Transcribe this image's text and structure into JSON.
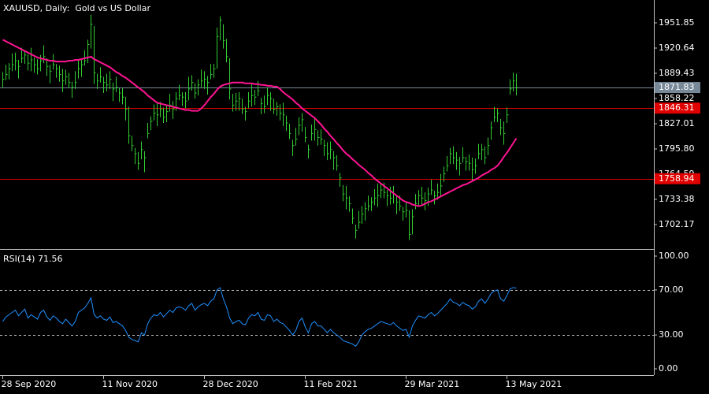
{
  "chart_data": [
    {
      "type": "ohlc",
      "title": "XAUUSD, Daily:  Gold vs US Dollar",
      "categories": [
        "28 Sep 2020",
        null,
        null,
        null,
        null,
        null,
        null,
        null,
        null,
        null,
        null,
        null,
        null,
        null,
        null,
        null,
        null,
        null,
        null,
        null,
        null,
        null,
        null,
        null,
        null,
        null,
        null,
        null,
        null,
        null,
        null,
        null,
        "11 Nov 2020",
        null,
        null,
        null,
        null,
        null,
        null,
        null,
        null,
        null,
        null,
        null,
        null,
        null,
        null,
        null,
        null,
        null,
        null,
        null,
        null,
        null,
        null,
        null,
        null,
        null,
        null,
        null,
        null,
        null,
        null,
        null,
        "28 Dec 2020",
        null,
        null,
        null,
        null,
        null,
        null,
        null,
        null,
        null,
        null,
        null,
        null,
        null,
        null,
        null,
        null,
        null,
        null,
        null,
        null,
        null,
        null,
        null,
        null,
        null,
        null,
        null,
        null,
        null,
        null,
        null,
        "11 Feb 2021",
        null,
        null,
        null,
        null,
        null,
        null,
        null,
        null,
        null,
        null,
        null,
        null,
        null,
        null,
        null,
        null,
        null,
        null,
        null,
        null,
        null,
        null,
        null,
        null,
        null,
        null,
        null,
        null,
        null,
        null,
        null,
        "29 Mar 2021",
        null,
        null,
        null,
        null,
        null,
        null,
        null,
        null,
        null,
        null,
        null,
        null,
        null,
        null,
        null,
        null,
        null,
        null,
        null,
        null,
        null,
        null,
        null,
        null,
        null,
        null,
        null,
        null,
        null,
        null,
        null,
        "13 May 2021",
        null,
        null,
        null
      ],
      "high": [
        1891,
        1900,
        1902,
        1914,
        1915,
        1906,
        1921,
        1918,
        1913,
        1921,
        1909,
        1907,
        1912,
        1924,
        1908,
        1900,
        1913,
        1901,
        1899,
        1895,
        1894,
        1890,
        1879,
        1892,
        1905,
        1908,
        1918,
        1931,
        1962,
        1948,
        1889,
        1897,
        1885,
        1889,
        1892,
        1878,
        1885,
        1871,
        1871,
        1860,
        1848,
        1812,
        1797,
        1792,
        1805,
        1793,
        1828,
        1836,
        1851,
        1853,
        1854,
        1847,
        1849,
        1864,
        1855,
        1866,
        1875,
        1866,
        1866,
        1885,
        1887,
        1877,
        1882,
        1894,
        1892,
        1886,
        1901,
        1901,
        1946,
        1960,
        1950,
        1932,
        1908,
        1864,
        1865,
        1866,
        1858,
        1848,
        1866,
        1877,
        1869,
        1880,
        1859,
        1862,
        1872,
        1866,
        1858,
        1854,
        1851,
        1853,
        1837,
        1827,
        1807,
        1822,
        1835,
        1840,
        1823,
        1801,
        1826,
        1835,
        1819,
        1820,
        1807,
        1804,
        1805,
        1793,
        1788,
        1766,
        1751,
        1750,
        1737,
        1722,
        1702,
        1719,
        1725,
        1730,
        1738,
        1736,
        1746,
        1753,
        1754,
        1754,
        1745,
        1749,
        1750,
        1738,
        1738,
        1724,
        1731,
        1720,
        1721,
        1740,
        1745,
        1749,
        1742,
        1748,
        1758,
        1744,
        1753,
        1765,
        1774,
        1787,
        1797,
        1799,
        1792,
        1786,
        1798,
        1786,
        1789,
        1785,
        1784,
        1802,
        1802,
        1799,
        1810,
        1830,
        1848,
        1846,
        1833,
        1830,
        1847,
        1882,
        1890,
        1889
      ],
      "low": [
        1872,
        1881,
        1882,
        1892,
        1893,
        1883,
        1902,
        1901,
        1893,
        1892,
        1890,
        1888,
        1892,
        1902,
        1886,
        1877,
        1894,
        1884,
        1879,
        1866,
        1875,
        1871,
        1859,
        1870,
        1883,
        1885,
        1899,
        1902,
        1920,
        1876,
        1870,
        1878,
        1865,
        1867,
        1870,
        1855,
        1866,
        1854,
        1851,
        1831,
        1802,
        1793,
        1777,
        1770,
        1783,
        1767,
        1809,
        1819,
        1831,
        1824,
        1835,
        1828,
        1829,
        1842,
        1833,
        1843,
        1856,
        1849,
        1846,
        1856,
        1868,
        1858,
        1862,
        1872,
        1870,
        1863,
        1882,
        1884,
        1895,
        1930,
        1920,
        1903,
        1857,
        1842,
        1843,
        1843,
        1839,
        1831,
        1846,
        1848,
        1850,
        1861,
        1839,
        1840,
        1850,
        1843,
        1839,
        1837,
        1831,
        1824,
        1818,
        1808,
        1787,
        1800,
        1813,
        1817,
        1804,
        1784,
        1806,
        1806,
        1800,
        1801,
        1787,
        1782,
        1783,
        1770,
        1769,
        1749,
        1731,
        1721,
        1718,
        1703,
        1685,
        1697,
        1703,
        1707,
        1719,
        1719,
        1726,
        1724,
        1735,
        1735,
        1725,
        1727,
        1728,
        1715,
        1719,
        1707,
        1711,
        1683,
        1690,
        1721,
        1725,
        1727,
        1720,
        1725,
        1739,
        1727,
        1733,
        1736,
        1755,
        1768,
        1777,
        1777,
        1770,
        1763,
        1779,
        1769,
        1769,
        1756,
        1765,
        1783,
        1782,
        1777,
        1788,
        1807,
        1829,
        1829,
        1813,
        1801,
        1828,
        1863,
        1867,
        1862
      ],
      "close": [
        1882,
        1888,
        1895,
        1900,
        1905,
        1898,
        1908,
        1912,
        1902,
        1906,
        1900,
        1895,
        1905,
        1910,
        1898,
        1892,
        1900,
        1895,
        1888,
        1880,
        1885,
        1878,
        1872,
        1878,
        1895,
        1900,
        1905,
        1925,
        1950,
        1890,
        1880,
        1885,
        1878,
        1875,
        1882,
        1870,
        1872,
        1865,
        1860,
        1845,
        1812,
        1800,
        1790,
        1778,
        1795,
        1785,
        1815,
        1830,
        1840,
        1838,
        1845,
        1835,
        1842,
        1850,
        1845,
        1858,
        1862,
        1860,
        1855,
        1870,
        1878,
        1865,
        1875,
        1880,
        1882,
        1878,
        1888,
        1895,
        1935,
        1955,
        1930,
        1910,
        1870,
        1850,
        1855,
        1858,
        1845,
        1842,
        1855,
        1862,
        1860,
        1868,
        1852,
        1848,
        1862,
        1858,
        1845,
        1848,
        1840,
        1838,
        1828,
        1815,
        1800,
        1808,
        1825,
        1832,
        1810,
        1795,
        1815,
        1820,
        1810,
        1808,
        1800,
        1790,
        1795,
        1785,
        1775,
        1760,
        1740,
        1735,
        1728,
        1710,
        1695,
        1705,
        1715,
        1722,
        1725,
        1730,
        1735,
        1738,
        1745,
        1742,
        1738,
        1735,
        1740,
        1730,
        1725,
        1718,
        1720,
        1690,
        1712,
        1728,
        1738,
        1735,
        1732,
        1740,
        1745,
        1738,
        1742,
        1750,
        1765,
        1775,
        1790,
        1785,
        1782,
        1778,
        1785,
        1780,
        1778,
        1770,
        1775,
        1790,
        1795,
        1785,
        1800,
        1822,
        1835,
        1840,
        1822,
        1815,
        1838,
        1870,
        1880,
        1871.83
      ],
      "color": "#32cd32",
      "ma": {
        "color": "#ff1493",
        "values": [
          1931,
          1929,
          1927,
          1925,
          1923,
          1921,
          1919,
          1917,
          1915,
          1913,
          1911,
          1909,
          1908,
          1907,
          1906,
          1905,
          1905,
          1904,
          1904,
          1904,
          1904,
          1905,
          1905,
          1906,
          1906,
          1907,
          1908,
          1909,
          1910,
          1907,
          1905,
          1903,
          1901,
          1899,
          1897,
          1894,
          1891,
          1889,
          1886,
          1884,
          1881,
          1878,
          1875,
          1872,
          1869,
          1866,
          1862,
          1859,
          1856,
          1853,
          1852,
          1851,
          1850,
          1849,
          1848,
          1847,
          1846,
          1845,
          1844,
          1844,
          1843,
          1843,
          1843,
          1846,
          1850,
          1855,
          1860,
          1864,
          1869,
          1873,
          1875,
          1876,
          1877,
          1878,
          1878,
          1878,
          1878,
          1877,
          1877,
          1877,
          1876,
          1876,
          1875,
          1875,
          1874,
          1874,
          1873,
          1873,
          1870,
          1866,
          1863,
          1860,
          1857,
          1853,
          1850,
          1846,
          1843,
          1840,
          1837,
          1834,
          1830,
          1826,
          1821,
          1817,
          1812,
          1808,
          1803,
          1799,
          1794,
          1790,
          1787,
          1783,
          1780,
          1776,
          1773,
          1770,
          1766,
          1763,
          1759,
          1756,
          1753,
          1750,
          1747,
          1744,
          1741,
          1738,
          1735,
          1732,
          1730,
          1729,
          1727,
          1726,
          1725,
          1726,
          1728,
          1730,
          1731,
          1733,
          1735,
          1737,
          1739,
          1741,
          1743,
          1745,
          1747,
          1749,
          1751,
          1752,
          1754,
          1756,
          1758,
          1760,
          1763,
          1765,
          1767,
          1770,
          1772,
          1775,
          1780,
          1786,
          1791,
          1797,
          1803,
          1809
        ]
      },
      "hlines": [
        {
          "value": 1871.83,
          "color": "#778899"
        },
        {
          "value": 1846.31,
          "color": "#e00000"
        },
        {
          "value": 1758.94,
          "color": "#e00000"
        }
      ],
      "ylim": [
        1672.9,
        1978.2
      ],
      "yticks": [
        1951.85,
        1920.64,
        1889.43,
        1858.22,
        1827.01,
        {
          "value": 1795.8,
          "label": "1795.80"
        },
        1764.59,
        1733.38,
        1702.17
      ]
    },
    {
      "type": "line",
      "title": "RSI(14) 71.56",
      "color": "#1e90ff",
      "values": [
        42,
        46,
        48,
        50,
        52,
        47,
        50,
        53,
        45,
        48,
        46,
        44,
        50,
        52,
        46,
        43,
        47,
        45,
        42,
        40,
        44,
        41,
        38,
        42,
        50,
        52,
        54,
        58,
        63,
        48,
        45,
        47,
        44,
        43,
        46,
        41,
        42,
        40,
        38,
        34,
        28,
        26,
        25,
        24,
        32,
        30,
        40,
        45,
        48,
        47,
        50,
        46,
        49,
        52,
        50,
        54,
        55,
        54,
        52,
        56,
        58,
        52,
        55,
        57,
        58,
        56,
        60,
        62,
        70,
        72,
        62,
        55,
        45,
        40,
        42,
        43,
        40,
        39,
        45,
        48,
        47,
        50,
        44,
        43,
        48,
        47,
        42,
        44,
        41,
        40,
        37,
        34,
        30,
        34,
        42,
        45,
        37,
        32,
        40,
        42,
        38,
        38,
        35,
        32,
        35,
        32,
        30,
        28,
        25,
        24,
        23,
        22,
        20,
        24,
        30,
        33,
        35,
        36,
        38,
        40,
        42,
        41,
        40,
        39,
        41,
        38,
        36,
        34,
        35,
        28,
        38,
        43,
        47,
        46,
        45,
        48,
        50,
        47,
        49,
        52,
        55,
        58,
        62,
        59,
        58,
        56,
        59,
        57,
        56,
        53,
        55,
        60,
        62,
        58,
        62,
        67,
        69,
        70,
        62,
        60,
        65,
        71,
        72,
        71.56
      ],
      "levels": [
        70,
        30
      ],
      "ylim": [
        -5.6,
        104.9
      ],
      "yticks": [
        {
          "value": 100,
          "label": "100.00"
        },
        {
          "value": 70,
          "label": "70.00"
        },
        {
          "value": 30,
          "label": "30.00"
        },
        {
          "value": 0,
          "label": "0.00"
        }
      ]
    }
  ]
}
